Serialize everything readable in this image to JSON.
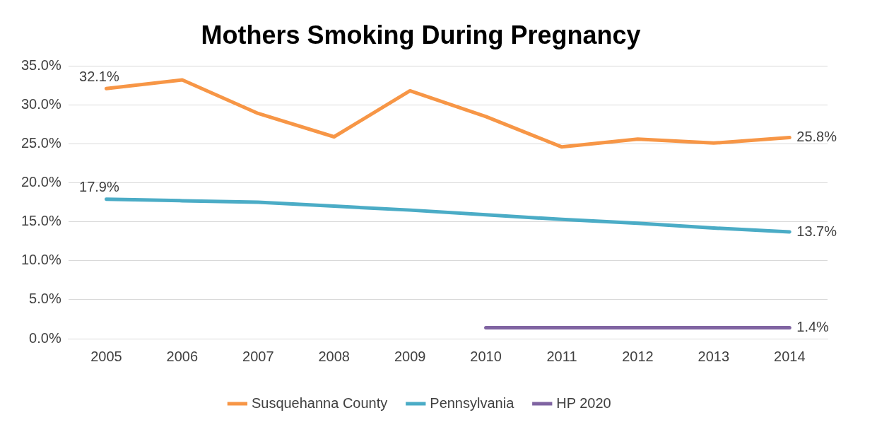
{
  "chart_data": {
    "type": "line",
    "title": "Mothers Smoking During Pregnancy",
    "categories": [
      "2005",
      "2006",
      "2007",
      "2008",
      "2009",
      "2010",
      "2011",
      "2012",
      "2013",
      "2014"
    ],
    "series": [
      {
        "name": "Susquehanna County",
        "color": "#f79646",
        "values": [
          32.1,
          33.2,
          28.9,
          25.9,
          31.8,
          28.5,
          24.6,
          25.6,
          25.1,
          25.8
        ],
        "value_labels": [
          "32.1%",
          null,
          null,
          null,
          null,
          null,
          null,
          null,
          null,
          "25.8%"
        ]
      },
      {
        "name": "Pennsylvania",
        "color": "#4bacc6",
        "values": [
          17.9,
          17.7,
          17.5,
          17.0,
          16.5,
          15.9,
          15.3,
          14.8,
          14.2,
          13.7
        ],
        "value_labels": [
          "17.9%",
          null,
          null,
          null,
          null,
          null,
          null,
          null,
          null,
          "13.7%"
        ]
      },
      {
        "name": "HP 2020",
        "color": "#8064a2",
        "values": [
          null,
          null,
          null,
          null,
          null,
          1.4,
          1.4,
          1.4,
          1.4,
          1.4
        ],
        "value_labels": [
          null,
          null,
          null,
          null,
          null,
          null,
          null,
          null,
          null,
          "1.4%"
        ]
      }
    ],
    "ylim": [
      0,
      35
    ],
    "yticks": [
      {
        "value": 0,
        "label": "0.0%"
      },
      {
        "value": 5,
        "label": "5.0%"
      },
      {
        "value": 10,
        "label": "10.0%"
      },
      {
        "value": 15,
        "label": "15.0%"
      },
      {
        "value": 20,
        "label": "20.0%"
      },
      {
        "value": 25,
        "label": "25.0%"
      },
      {
        "value": 30,
        "label": "30.0%"
      },
      {
        "value": 35,
        "label": "35.0%"
      }
    ],
    "grid": "y",
    "legend": "bottom",
    "marker": "none",
    "line_style": "solid"
  }
}
